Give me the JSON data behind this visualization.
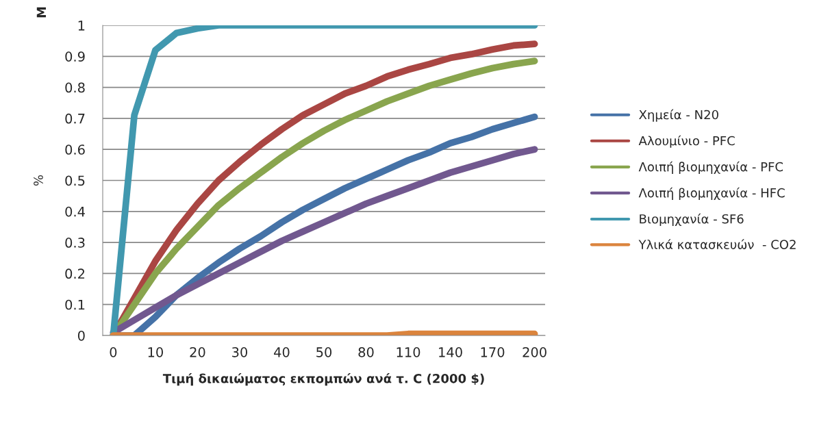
{
  "chart_data": {
    "type": "line",
    "xlabel": "Τιμή δικαιώματος εκπομπών ανά τ. C (2000 $)",
    "ylabel": "%",
    "annotations": [
      "M"
    ],
    "categories": [
      "0",
      null,
      "10",
      null,
      "20",
      null,
      "30",
      null,
      "40",
      null,
      "50",
      null,
      "80",
      null,
      "110",
      null,
      "140",
      null,
      "170",
      null,
      "200"
    ],
    "series": [
      {
        "name": "Χημεία - N20",
        "color": "#4572a7",
        "values": [
          0,
          0,
          0.06,
          0.13,
          0.185,
          0.235,
          0.28,
          0.32,
          0.365,
          0.405,
          0.44,
          0.475,
          0.505,
          0.535,
          0.565,
          0.59,
          0.62,
          0.64,
          0.665,
          0.685,
          0.705
        ]
      },
      {
        "name": "Αλουμίνιο - PFC",
        "color": "#aa4643",
        "values": [
          0,
          0.12,
          0.24,
          0.34,
          0.425,
          0.5,
          0.56,
          0.615,
          0.665,
          0.71,
          0.745,
          0.78,
          0.805,
          0.835,
          0.857,
          0.875,
          0.895,
          0.907,
          0.922,
          0.935,
          0.94
        ]
      },
      {
        "name": "Λοιπή βιομηχανία - PFC",
        "color": "#89a54e",
        "values": [
          0,
          0.1,
          0.2,
          0.28,
          0.35,
          0.42,
          0.475,
          0.525,
          0.575,
          0.62,
          0.66,
          0.695,
          0.725,
          0.755,
          0.78,
          0.805,
          0.825,
          0.845,
          0.862,
          0.875,
          0.885
        ]
      },
      {
        "name": "Λοιπή βιομηχανία - HFC",
        "color": "#71588f",
        "values": [
          0.01,
          0.05,
          0.09,
          0.13,
          0.165,
          0.2,
          0.235,
          0.27,
          0.305,
          0.335,
          0.365,
          0.395,
          0.425,
          0.45,
          0.475,
          0.5,
          0.525,
          0.545,
          0.565,
          0.585,
          0.6
        ]
      },
      {
        "name": "Βιομηχανία - SF6",
        "color": "#4198af",
        "values": [
          0,
          0.71,
          0.92,
          0.975,
          0.99,
          1,
          1,
          1,
          1,
          1,
          1,
          1,
          1,
          1,
          1,
          1,
          1,
          1,
          1,
          1,
          1
        ]
      },
      {
        "name": "Υλικά κατασκευών  - CO2",
        "color": "#db843d",
        "values": [
          0,
          0,
          0,
          0,
          0,
          0,
          0,
          0,
          0,
          0,
          0,
          0,
          0,
          0,
          0.005,
          0.005,
          0.005,
          0.005,
          0.005,
          0.005,
          0.005
        ]
      }
    ],
    "ylim": [
      0,
      1
    ],
    "yticks": [
      0,
      0.1,
      0.2,
      0.3,
      0.4,
      0.5,
      0.6,
      0.7,
      0.8,
      0.9,
      1
    ],
    "grid": "y",
    "legend": "right",
    "marker": "none",
    "line_style": "solid"
  }
}
